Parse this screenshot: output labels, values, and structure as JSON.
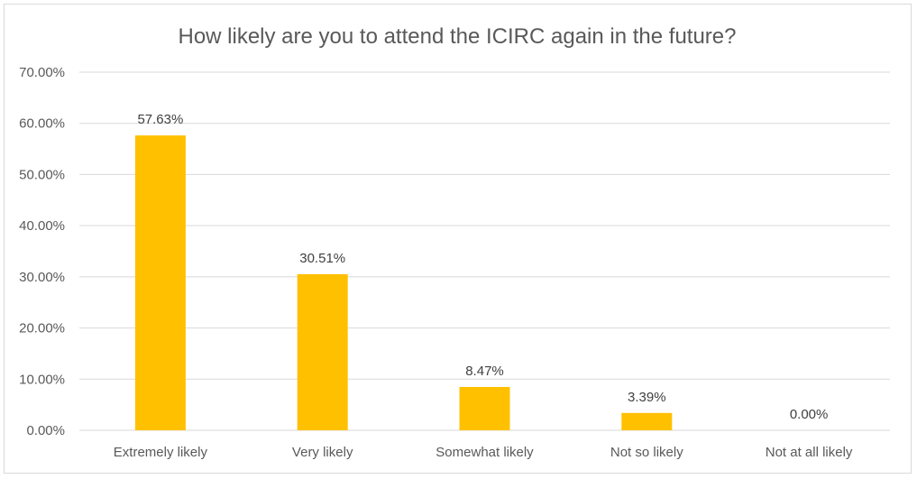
{
  "chart_data": {
    "type": "bar",
    "title": "How likely are you to attend the ICIRC again in the future?",
    "xlabel": "",
    "ylabel": "",
    "categories": [
      "Extremely likely",
      "Very likely",
      "Somewhat likely",
      "Not so likely",
      "Not at all likely"
    ],
    "values": [
      57.63,
      30.51,
      8.47,
      3.39,
      0.0
    ],
    "data_labels": [
      "57.63%",
      "30.51%",
      "8.47%",
      "3.39%",
      "0.00%"
    ],
    "ylim": [
      0,
      70
    ],
    "yticks": [
      0,
      10,
      20,
      30,
      40,
      50,
      60,
      70
    ],
    "ytick_labels": [
      "0.00%",
      "10.00%",
      "20.00%",
      "30.00%",
      "40.00%",
      "50.00%",
      "60.00%",
      "70.00%"
    ],
    "grid": true,
    "legend": "none",
    "bar_color": "#FFC000",
    "gridline_color": "#D9D9D9",
    "text_color": "#595959"
  }
}
